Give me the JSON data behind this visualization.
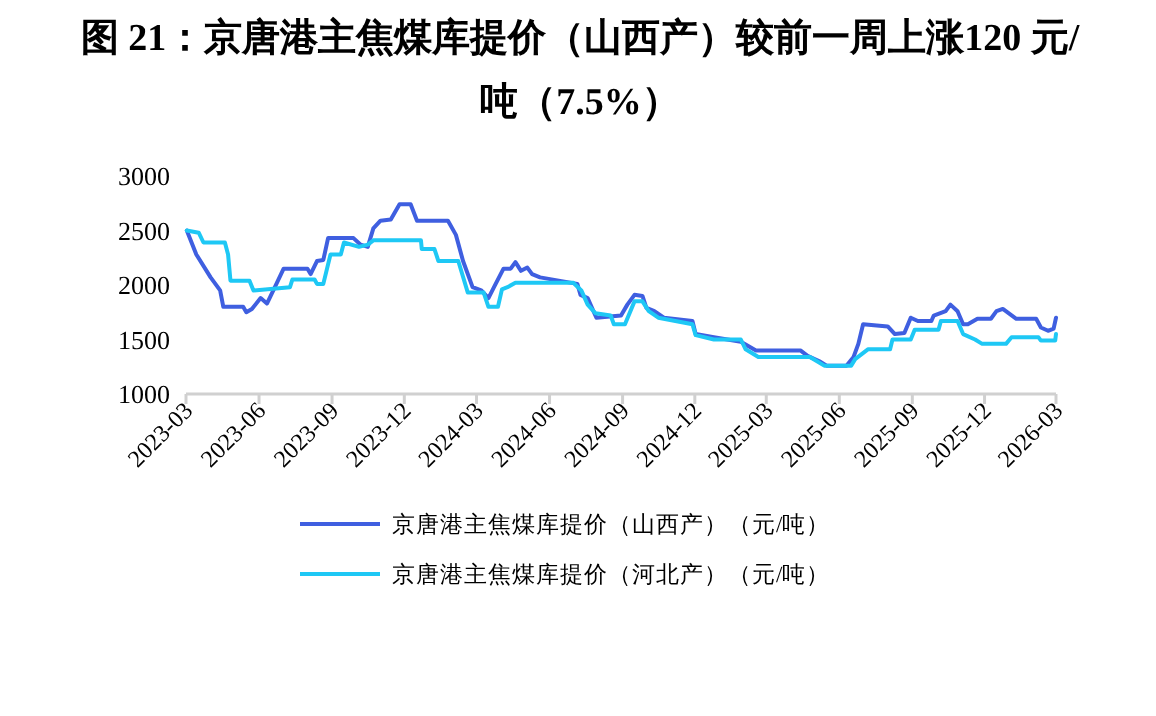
{
  "chart_data": {
    "type": "line",
    "title": "图 21：京唐港主焦煤库提价（山西产）较前一周上涨120 元/吨（7.5%）",
    "xlim": [
      "2023-03",
      "2026-03"
    ],
    "xticks": [
      "2023-03",
      "2023-06",
      "2023-09",
      "2023-12",
      "2024-03",
      "2024-06",
      "2024-09",
      "2024-12",
      "2025-03",
      "2025-06",
      "2025-09",
      "2025-12",
      "2026-03"
    ],
    "ylim": [
      1000,
      3000
    ],
    "yticks": [
      1000,
      1500,
      2000,
      2500,
      3000
    ],
    "legend": "bottom",
    "grid": false,
    "marker": "none",
    "line_style": "solid",
    "series": [
      {
        "name": "京唐港主焦煤库提价（山西产）（元/吨）",
        "color": "#3f5fe0",
        "x": [
          "2023-03-02",
          "2023-03-14",
          "2023-04-01",
          "2023-04-13",
          "2023-04-17",
          "2023-05-12",
          "2023-05-16",
          "2023-05-23",
          "2023-06-03",
          "2023-06-11",
          "2023-06-19",
          "2023-07-02",
          "2023-08-01",
          "2023-08-05",
          "2023-08-13",
          "2023-08-21",
          "2023-08-27",
          "2023-09-28",
          "2023-10-07",
          "2023-10-16",
          "2023-10-23",
          "2023-11-01",
          "2023-11-14",
          "2023-11-25",
          "2023-12-09",
          "2023-12-17",
          "2024-01-25",
          "2024-02-04",
          "2024-02-13",
          "2024-02-25",
          "2024-03-07",
          "2024-03-16",
          "2024-03-23",
          "2024-04-04",
          "2024-04-13",
          "2024-04-19",
          "2024-04-26",
          "2024-05-04",
          "2024-05-10",
          "2024-05-20",
          "2024-07-06",
          "2024-07-10",
          "2024-07-19",
          "2024-07-30",
          "2024-08-30",
          "2024-09-07",
          "2024-09-16",
          "2024-09-26",
          "2024-10-01",
          "2024-10-11",
          "2024-10-23",
          "2024-11-28",
          "2024-12-02",
          "2024-12-25",
          "2025-01-28",
          "2025-02-16",
          "2025-04-13",
          "2025-04-22",
          "2025-05-07",
          "2025-05-16",
          "2025-06-10",
          "2025-06-19",
          "2025-06-25",
          "2025-07-01",
          "2025-08-01",
          "2025-08-10",
          "2025-08-22",
          "2025-08-30",
          "2025-09-08",
          "2025-09-25",
          "2025-09-28",
          "2025-10-13",
          "2025-10-19",
          "2025-10-28",
          "2025-11-04",
          "2025-11-10",
          "2025-11-22",
          "2025-12-09",
          "2025-12-16",
          "2025-12-24",
          "2026-01-10",
          "2026-02-04",
          "2026-02-10",
          "2026-02-19",
          "2026-02-26",
          "2026-03-01"
        ],
        "values": [
          2500,
          2280,
          2070,
          1950,
          1800,
          1800,
          1750,
          1780,
          1880,
          1830,
          1950,
          2150,
          2150,
          2100,
          2220,
          2230,
          2430,
          2430,
          2370,
          2350,
          2520,
          2590,
          2600,
          2740,
          2740,
          2590,
          2590,
          2460,
          2220,
          1980,
          1950,
          1880,
          1980,
          2150,
          2150,
          2210,
          2130,
          2160,
          2100,
          2070,
          2010,
          1910,
          1880,
          1700,
          1720,
          1820,
          1910,
          1900,
          1790,
          1760,
          1700,
          1670,
          1550,
          1520,
          1480,
          1400,
          1400,
          1350,
          1300,
          1260,
          1260,
          1340,
          1460,
          1640,
          1620,
          1550,
          1560,
          1700,
          1670,
          1670,
          1720,
          1760,
          1820,
          1760,
          1640,
          1640,
          1690,
          1690,
          1760,
          1780,
          1690,
          1690,
          1610,
          1580,
          1600,
          1700
        ]
      },
      {
        "name": "京唐港主焦煤库提价（河北产）（元/吨）",
        "color": "#1ec8f5",
        "x": [
          "2023-03-02",
          "2023-03-17",
          "2023-03-23",
          "2023-04-19",
          "2023-04-23",
          "2023-04-26",
          "2023-05-20",
          "2023-05-25",
          "2023-07-10",
          "2023-07-13",
          "2023-08-10",
          "2023-08-13",
          "2023-08-21",
          "2023-08-30",
          "2023-09-12",
          "2023-09-16",
          "2023-10-05",
          "2023-10-16",
          "2023-10-23",
          "2023-12-22",
          "2023-12-23",
          "2024-01-08",
          "2024-01-13",
          "2024-02-07",
          "2024-02-19",
          "2024-03-10",
          "2024-03-16",
          "2024-03-28",
          "2024-04-02",
          "2024-04-09",
          "2024-04-19",
          "2024-07-01",
          "2024-07-11",
          "2024-07-19",
          "2024-07-29",
          "2024-08-17",
          "2024-08-21",
          "2024-09-04",
          "2024-09-16",
          "2024-09-26",
          "2024-10-04",
          "2024-10-16",
          "2024-11-28",
          "2024-12-02",
          "2024-12-25",
          "2025-01-28",
          "2025-02-03",
          "2025-02-19",
          "2025-04-25",
          "2025-05-13",
          "2025-06-16",
          "2025-06-21",
          "2025-07-07",
          "2025-08-04",
          "2025-08-07",
          "2025-08-30",
          "2025-09-04",
          "2025-10-04",
          "2025-10-07",
          "2025-10-28",
          "2025-11-04",
          "2025-11-19",
          "2025-11-28",
          "2025-12-28",
          "2026-01-04",
          "2026-02-07",
          "2026-02-10",
          "2026-02-28",
          "2026-03-01"
        ],
        "values": [
          2500,
          2480,
          2390,
          2390,
          2280,
          2040,
          2040,
          1950,
          1980,
          2050,
          2050,
          2010,
          2010,
          2280,
          2280,
          2390,
          2350,
          2370,
          2410,
          2410,
          2330,
          2330,
          2220,
          2220,
          1930,
          1930,
          1800,
          1800,
          1960,
          1980,
          2020,
          2020,
          1950,
          1820,
          1740,
          1720,
          1640,
          1640,
          1850,
          1850,
          1760,
          1700,
          1640,
          1540,
          1500,
          1500,
          1410,
          1340,
          1340,
          1260,
          1260,
          1320,
          1410,
          1410,
          1500,
          1500,
          1590,
          1590,
          1670,
          1670,
          1550,
          1500,
          1460,
          1460,
          1520,
          1520,
          1490,
          1490,
          1550
        ]
      }
    ]
  }
}
